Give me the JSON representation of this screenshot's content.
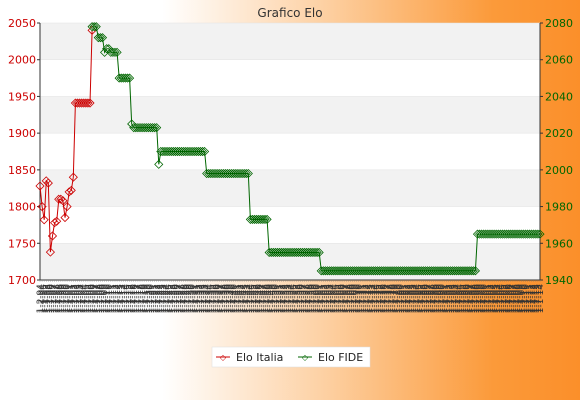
{
  "chart_data": {
    "type": "line",
    "title": "Grafico Elo",
    "left_axis": {
      "ylim": [
        1700,
        2050
      ],
      "ticks": [
        1700,
        1750,
        1800,
        1850,
        1900,
        1950,
        2000,
        2050
      ],
      "color": "#cc0000"
    },
    "right_axis": {
      "ylim": [
        1940,
        2080
      ],
      "ticks": [
        1940,
        1960,
        1980,
        2000,
        2020,
        2040,
        2060,
        2080
      ],
      "color": "#006600"
    },
    "grid": "horizontal alternating bands",
    "legend_placement": "bottom-center",
    "legend": [
      {
        "name": "Elo Italia",
        "color": "#cc0000"
      },
      {
        "name": "Elo FIDE",
        "color": "#006600"
      }
    ],
    "series": [
      {
        "name": "Elo Italia",
        "axis": "left",
        "color": "#cc0000",
        "start_index": 0,
        "values": [
          1828,
          1800,
          1782,
          1835,
          1832,
          1738,
          1760,
          1778,
          1780,
          1810,
          1810,
          1808,
          1785,
          1800,
          1820,
          1822,
          1840,
          1941,
          1941,
          1941,
          1941,
          1941,
          1941,
          1941,
          1941,
          2040
        ]
      },
      {
        "name": "Elo FIDE",
        "axis": "right",
        "color": "#006600",
        "start_index": 25,
        "values": [
          2078,
          2078,
          2078,
          2072,
          2072,
          2072,
          2064,
          2066,
          2066,
          2064,
          2064,
          2064,
          2064,
          2050,
          2050,
          2050,
          2050,
          2050,
          2050,
          2025,
          2023,
          2023,
          2023,
          2023,
          2023,
          2023,
          2023,
          2023,
          2023,
          2023,
          2023,
          2023,
          2003,
          2010,
          2010,
          2010,
          2010,
          2010,
          2010,
          2010,
          2010,
          2010,
          2010,
          2010,
          2010,
          2010,
          2010,
          2010,
          2010,
          2010,
          2010,
          2010,
          2010,
          2010,
          2010,
          1998,
          1998,
          1998,
          1998,
          1998,
          1998,
          1998,
          1998,
          1998,
          1998,
          1998,
          1998,
          1998,
          1998,
          1998,
          1998,
          1998,
          1998,
          1998,
          1998,
          1998,
          1973,
          1973,
          1973,
          1973,
          1973,
          1973,
          1973,
          1973,
          1973,
          1955,
          1955,
          1955,
          1955,
          1955,
          1955,
          1955,
          1955,
          1955,
          1955,
          1955,
          1955,
          1955,
          1955,
          1955,
          1955,
          1955,
          1955,
          1955,
          1955,
          1955,
          1955,
          1955,
          1955,
          1955,
          1945,
          1945,
          1945,
          1945,
          1945,
          1945,
          1945,
          1945,
          1945,
          1945,
          1945,
          1945,
          1945,
          1945,
          1945,
          1945,
          1945,
          1945,
          1945,
          1945,
          1945,
          1945,
          1945,
          1945,
          1945,
          1945,
          1945,
          1945,
          1945,
          1945,
          1945,
          1945,
          1945,
          1945,
          1945,
          1945,
          1945,
          1945,
          1945,
          1945,
          1945,
          1945,
          1945,
          1945,
          1945,
          1945,
          1945,
          1945,
          1945,
          1945,
          1945,
          1945,
          1945,
          1945,
          1945,
          1945,
          1945,
          1945,
          1945,
          1945,
          1945,
          1945,
          1945,
          1945,
          1945,
          1945,
          1945,
          1945,
          1945,
          1945,
          1945,
          1945,
          1945,
          1945,
          1945,
          1965,
          1965,
          1965,
          1965,
          1965,
          1965,
          1965,
          1965,
          1965,
          1965,
          1965,
          1965,
          1965,
          1965,
          1965,
          1965,
          1965,
          1965,
          1965,
          1965,
          1965,
          1965,
          1965,
          1965,
          1965,
          1965,
          1965,
          1965,
          1965,
          1965,
          1965
        ]
      }
    ],
    "x_tick_labels": [
      "1-2-94",
      "1-7-94",
      "1-1-95",
      "1-7-95",
      "1-1-96",
      "1-7-96",
      "1-1-97",
      "1-7-97",
      "1-1-98",
      "1-7-98",
      "1-1-99",
      "1-7-99",
      "1-1-00",
      "1-7-00",
      "1-1-01",
      "1-7-01",
      "1-1-02",
      "1-7-02",
      "1-1-03",
      "1-7-03",
      "1-1-04",
      "1-7-04",
      "1-1-05",
      "1-7-05",
      "1-1-06",
      "1-7-06",
      "1-1-07",
      "1-7-07",
      "1-1-08",
      "1-7-08",
      "1-1-09",
      "1-7-09",
      "1-1-10",
      "1-7-10",
      "1-1-11",
      "1-7-11",
      "1-1-12",
      "1-7-12",
      "1-1-13",
      "1-7-13",
      "1-1-14",
      "1-7-14",
      "1-1-15",
      "1-7-15",
      "1-1-16",
      "1-7-16",
      "1-1-17",
      "1-7-17",
      "1-1-18",
      "1-7-18",
      "1-1-19",
      "1-7-19",
      "1-1-20",
      "1-7-20",
      "1-1-21",
      "1-7-21",
      "1-1-22",
      "1-7-22",
      "1-1-23",
      "1-7-23",
      "1-1-24",
      "1-7-24",
      "1-1-25",
      "1-7-25",
      "1-1-26",
      "1-7-26",
      "1-1-27",
      "1-7-27",
      "1-1-28",
      "1-7-28",
      "1-1-29",
      "1-7-29",
      "1-1-30",
      "1-7-30",
      "1-1-31",
      "1-7-31",
      "1-1-32",
      "1-7-32",
      "1-1-33",
      "1-7-33",
      "1-1-34",
      "1-7-34",
      "1-1-35",
      "1-7-35",
      "1-1-36",
      "1-7-36",
      "1-1-37",
      "1-7-37",
      "1-1-38",
      "1-7-38",
      "1-1-39",
      "1-7-39",
      "1-1-40",
      "1-7-40",
      "1-1-41",
      "1-7-41",
      "1-1-42",
      "1-7-42",
      "1-1-43",
      "1-7-43",
      "1-1-44",
      "1-7-44",
      "1-1-45",
      "1-7-45",
      "1-1-46",
      "1-7-46",
      "1-1-47",
      "1-7-47",
      "1-1-48",
      "1-7-48",
      "1-1-49",
      "1-7-49",
      "1-1-50",
      "1-7-50",
      "1-1-51",
      "1-7-51",
      "1-1-52",
      "1-7-52",
      "1-1-53",
      "1-7-53",
      "1-1-54",
      "1-7-54",
      "1-1-55",
      "1-7-55",
      "1-1-56",
      "1-7-56",
      "1-1-57",
      "1-7-57",
      "1-1-58",
      "1-7-58",
      "1-1-59",
      "1-7-59",
      "1-1-60",
      "1-7-60",
      "1-1-61",
      "1-7-61",
      "1-1-62",
      "1-7-62",
      "1-1-63",
      "1-7-63",
      "1-1-64",
      "1-7-64",
      "1-1-65",
      "1-7-65",
      "1-1-66",
      "1-7-66",
      "1-1-67",
      "1-7-67",
      "1-1-68",
      "1-7-68",
      "1-1-69",
      "1-7-69",
      "1-1-70",
      "1-7-70",
      "1-1-71",
      "1-7-71",
      "1-1-72",
      "1-7-72",
      "1-1-73",
      "1-7-73",
      "1-1-74",
      "1-7-74",
      "1-1-75",
      "1-7-75",
      "1-1-76",
      "1-7-76",
      "1-1-77",
      "1-7-77",
      "1-1-78",
      "1-7-78",
      "1-1-79",
      "1-7-79",
      "1-1-80",
      "1-7-80",
      "1-1-81",
      "1-7-81",
      "1-1-82",
      "1-7-82",
      "1-1-83",
      "1-7-83",
      "1-1-84",
      "1-7-84",
      "1-1-85",
      "1-7-85",
      "1-1-86",
      "1-7-86",
      "1-1-87",
      "1-7-87",
      "1-1-88",
      "1-7-88",
      "1-1-89",
      "1-7-89",
      "1-1-90",
      "1-7-90",
      "1-1-91",
      "1-7-91",
      "1-1-92",
      "1-7-92",
      "1-1-93",
      "1-7-93",
      "1-1-94",
      "1-7-94",
      "1-1-95",
      "1-7-95",
      "1-1-96",
      "1-7-96",
      "1-1-97",
      "1-7-97",
      "1-1-98",
      "1-7-98",
      "1-1-99",
      "1-7-99",
      "1-1-00",
      "1-7-00",
      "1-1-01",
      "1-7-01",
      "1-1-02",
      "1-7-02",
      "1-1-03",
      "1-7-03",
      "1-1-04",
      "1-7-04",
      "1-1-05",
      "1-7-05",
      "1-1-06",
      "1-7-06",
      "1-1-07",
      "1-7-07",
      "1-1-08",
      "1-7-08",
      "1-1-09",
      "1-7-09",
      "1-1-10",
      "1-7-10",
      "1-1-11",
      "1-7-11",
      "1-1-12",
      "1-7-12",
      "1-1-13",
      "1-7-13",
      "1-1-14"
    ]
  }
}
